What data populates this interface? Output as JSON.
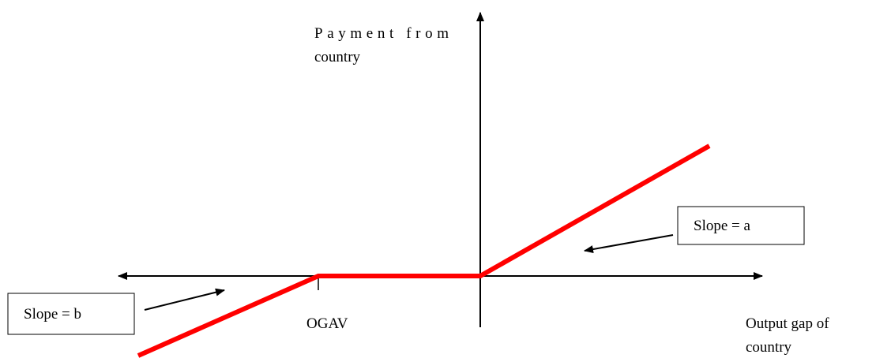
{
  "y_axis_label": {
    "lines": [
      "Payment from",
      "country"
    ]
  },
  "x_axis_label": {
    "lines": [
      "Output gap of",
      "country"
    ]
  },
  "threshold_label": "OGAV",
  "annotations": [
    {
      "text": "Slope = a"
    },
    {
      "text": "Slope = b"
    }
  ]
}
